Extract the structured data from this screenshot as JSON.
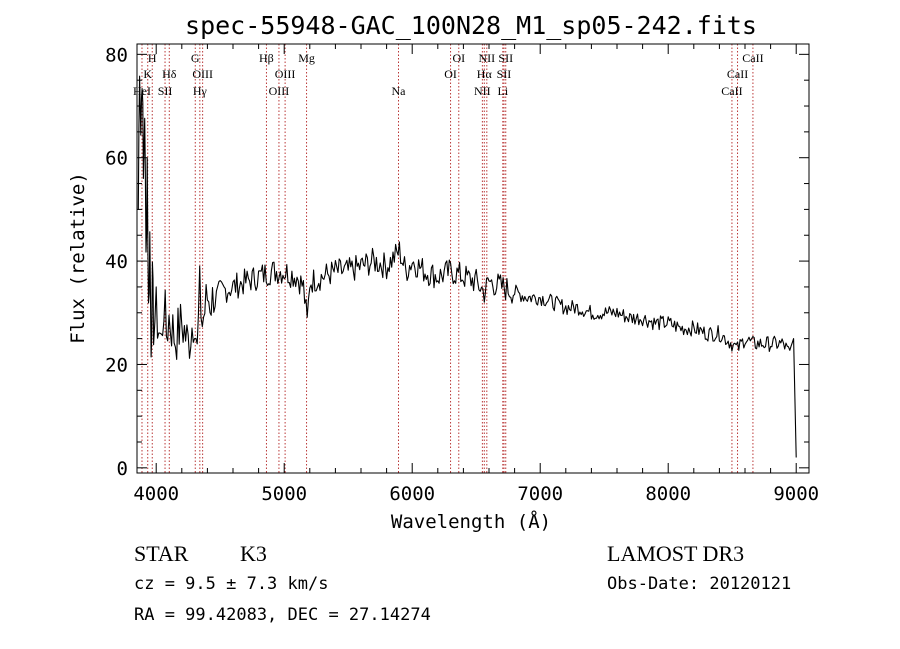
{
  "chart_data": {
    "type": "line",
    "title": "spec-55948-GAC_100N28_M1_sp05-242.fits",
    "xlabel": "Wavelength (Å)",
    "ylabel": "Flux (relative)",
    "xlim": [
      3850,
      9100
    ],
    "ylim": [
      -1,
      82
    ],
    "xticks": [
      4000,
      5000,
      6000,
      7000,
      8000,
      9000
    ],
    "yticks": [
      0,
      20,
      40,
      60,
      80
    ],
    "series": [
      {
        "name": "flux",
        "x": [
          3860,
          3870,
          3880,
          3890,
          3900,
          3910,
          3920,
          3930,
          3940,
          3950,
          3960,
          3970,
          3980,
          4000,
          4020,
          4040,
          4060,
          4080,
          4100,
          4150,
          4200,
          4250,
          4300,
          4320,
          4340,
          4360,
          4400,
          4450,
          4500,
          4600,
          4700,
          4800,
          4900,
          5000,
          5100,
          5150,
          5180,
          5200,
          5300,
          5400,
          5500,
          5600,
          5700,
          5800,
          5900,
          5950,
          6000,
          6100,
          6200,
          6300,
          6400,
          6500,
          6563,
          6600,
          6700,
          6800,
          6900,
          7000,
          7100,
          7200,
          7300,
          7400,
          7500,
          7600,
          7700,
          7800,
          7900,
          8000,
          8100,
          8200,
          8300,
          8400,
          8498,
          8542,
          8600,
          8662,
          8700,
          8800,
          8900,
          8950,
          8980,
          9000
        ],
        "y": [
          50,
          80,
          65,
          78,
          55,
          70,
          40,
          60,
          30,
          45,
          25,
          35,
          28,
          30,
          27,
          24,
          32,
          26,
          29,
          25,
          28,
          24,
          30,
          22,
          34,
          28,
          33,
          32,
          34,
          35,
          36,
          37,
          38,
          38,
          37,
          35,
          28,
          36,
          37,
          38,
          38,
          39,
          40,
          39,
          42,
          38,
          40,
          38,
          37,
          38,
          37,
          36,
          34,
          36,
          35,
          34,
          33,
          33,
          32,
          31,
          31,
          30,
          30,
          30,
          29,
          29,
          28,
          28,
          27,
          27,
          26,
          26,
          24,
          23,
          25,
          24,
          24,
          24,
          24,
          22,
          25,
          2
        ]
      }
    ],
    "emission_lines": [
      {
        "label": "K",
        "wavelength": 3934,
        "row": 2
      },
      {
        "label": "H",
        "wavelength": 3969,
        "row": 1
      },
      {
        "label": "HeI",
        "wavelength": 3889,
        "row": 3
      },
      {
        "label": "SII",
        "wavelength": 4069,
        "row": 3
      },
      {
        "label": "Hδ",
        "wavelength": 4102,
        "row": 2
      },
      {
        "label": "G",
        "wavelength": 4305,
        "row": 1
      },
      {
        "label": "OIII",
        "wavelength": 4363,
        "row": 2
      },
      {
        "label": "Hγ",
        "wavelength": 4341,
        "row": 3
      },
      {
        "label": "Hβ",
        "wavelength": 4861,
        "row": 1
      },
      {
        "label": "OIII",
        "wavelength": 5007,
        "row": 2
      },
      {
        "label": "OIII",
        "wavelength": 4959,
        "row": 3
      },
      {
        "label": "Mg",
        "wavelength": 5175,
        "row": 1
      },
      {
        "label": "Na",
        "wavelength": 5893,
        "row": 3
      },
      {
        "label": "OI",
        "wavelength": 6364,
        "row": 1
      },
      {
        "label": "OI",
        "wavelength": 6300,
        "row": 2
      },
      {
        "label": "NII",
        "wavelength": 6583,
        "row": 1
      },
      {
        "label": "Hα",
        "wavelength": 6563,
        "row": 2
      },
      {
        "label": "NII",
        "wavelength": 6548,
        "row": 3
      },
      {
        "label": "SII",
        "wavelength": 6731,
        "row": 1
      },
      {
        "label": "SII",
        "wavelength": 6717,
        "row": 2
      },
      {
        "label": "Li",
        "wavelength": 6708,
        "row": 3
      },
      {
        "label": "CaII",
        "wavelength": 8662,
        "row": 1
      },
      {
        "label": "CaII",
        "wavelength": 8542,
        "row": 2
      },
      {
        "label": "CaII",
        "wavelength": 8498,
        "row": 3
      }
    ]
  },
  "info": {
    "class": "STAR",
    "subclass": "K3",
    "survey": "LAMOST DR3",
    "cz": "cz = 9.5 ± 7.3 km/s",
    "obs_date": "Obs-Date: 20120121",
    "radec": "RA =  99.42083, DEC =  27.14274"
  },
  "colors": {
    "line_marker": "#b22222",
    "spectrum": "#000000"
  }
}
